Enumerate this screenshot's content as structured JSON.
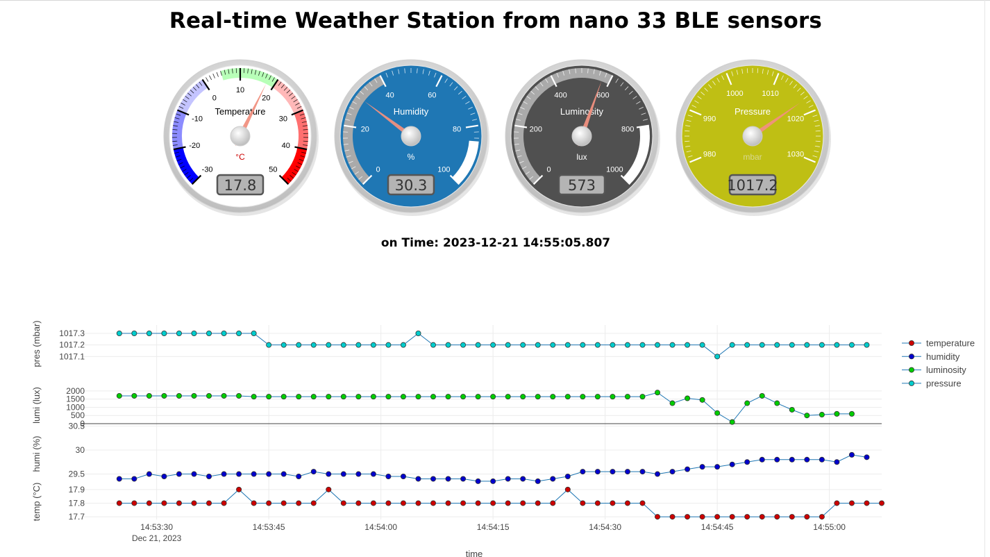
{
  "page": {
    "title": "Real-time Weather Station from nano 33 BLE sensors",
    "time_label": "on Time: 2023-12-21 14:55:05.807"
  },
  "gauges": [
    {
      "id": "temperature",
      "title": "Temperature",
      "units": "°C",
      "value": 17.8,
      "display": "17.8",
      "min": -30,
      "max": 50,
      "major_ticks": [
        "-30",
        "-20",
        "-10",
        "0",
        "10",
        "20",
        "30",
        "40",
        "50"
      ],
      "face_color": "#ffffff",
      "text_color": "#000000",
      "units_color": "#cc0000",
      "highlights": [
        {
          "from": -30,
          "to": -20,
          "color": "#0000ff"
        },
        {
          "from": -20,
          "to": -10,
          "color": "#8c8cff"
        },
        {
          "from": -10,
          "to": 0,
          "color": "#c4c4ff"
        },
        {
          "from": 5,
          "to": 20,
          "color": "#b8ffb8"
        },
        {
          "from": 20,
          "to": 30,
          "color": "#ffb8b8"
        },
        {
          "from": 30,
          "to": 40,
          "color": "#ff7070"
        },
        {
          "from": 40,
          "to": 50,
          "color": "#ff0000"
        }
      ]
    },
    {
      "id": "humidity",
      "title": "Humidity",
      "units": "%",
      "value": 30.3,
      "display": "30.3",
      "min": 0,
      "max": 100,
      "major_ticks": [
        "0",
        "20",
        "40",
        "60",
        "80",
        "100"
      ],
      "face_color": "#1f77b4",
      "text_color": "#ffffff",
      "units_color": "#ffffff",
      "highlights": [
        {
          "from": 0,
          "to": 40,
          "color": "#aaaaaa"
        },
        {
          "from": 85,
          "to": 100,
          "color": "#ffffff"
        }
      ]
    },
    {
      "id": "luminosity",
      "title": "Luminosity",
      "units": "lux",
      "value": 573,
      "display": "573",
      "min": 0,
      "max": 1000,
      "major_ticks": [
        "0",
        "200",
        "400",
        "600",
        "800",
        "1000"
      ],
      "face_color": "#505050",
      "text_color": "#ffffff",
      "units_color": "#ffffff",
      "highlights": [
        {
          "from": 0,
          "to": 600,
          "color": "#aaaaaa"
        },
        {
          "from": 800,
          "to": 1000,
          "color": "#ffffff"
        }
      ]
    },
    {
      "id": "pressure",
      "title": "Pressure",
      "units": "mbar",
      "value": 1017.2,
      "display": "1017.2",
      "min": 975,
      "max": 1035,
      "major_ticks": [
        "980",
        "990",
        "1000",
        "1010",
        "1020",
        "1030"
      ],
      "tick_values": [
        980,
        990,
        1000,
        1010,
        1020,
        1030
      ],
      "face_color": "#bfbf14",
      "text_color": "#ffffff",
      "units_color": "#d8d890",
      "highlights": []
    }
  ],
  "chart_data": {
    "type": "line",
    "xlabel": "time",
    "x_ticks": [
      "14:53:30",
      "14:53:45",
      "14:54:00",
      "14:54:15",
      "14:54:30",
      "14:54:45",
      "14:55:00"
    ],
    "x_tick_sublabel": "Dec 21, 2023",
    "x_start_time": "14:53:25",
    "x_step_seconds": 2,
    "x_range": [
      "14:53:20",
      "14:55:07"
    ],
    "legend_position": "right",
    "grid": true,
    "series": [
      {
        "name": "temperature",
        "ylabel": "temp (°C)",
        "color": "#cc0000",
        "yticks": [
          "17.7",
          "17.8",
          "17.9"
        ],
        "ylim": [
          17.68,
          17.94
        ],
        "values": [
          17.8,
          17.8,
          17.8,
          17.8,
          17.8,
          17.8,
          17.8,
          17.8,
          17.9,
          17.8,
          17.8,
          17.8,
          17.8,
          17.8,
          17.9,
          17.8,
          17.8,
          17.8,
          17.8,
          17.8,
          17.8,
          17.8,
          17.8,
          17.8,
          17.8,
          17.8,
          17.8,
          17.8,
          17.8,
          17.8,
          17.9,
          17.8,
          17.8,
          17.8,
          17.8,
          17.8,
          17.7,
          17.7,
          17.7,
          17.7,
          17.7,
          17.7,
          17.7,
          17.7,
          17.7,
          17.7,
          17.7,
          17.7,
          17.8,
          17.8,
          17.8,
          17.8
        ]
      },
      {
        "name": "humidity",
        "ylabel": "humi (%)",
        "color": "#0000cc",
        "yticks": [
          "29.5",
          "30",
          "30.5"
        ],
        "ylim": [
          29.32,
          30.52
        ],
        "values": [
          29.4,
          29.4,
          29.5,
          29.45,
          29.5,
          29.5,
          29.45,
          29.5,
          29.5,
          29.5,
          29.5,
          29.5,
          29.45,
          29.55,
          29.5,
          29.5,
          29.5,
          29.5,
          29.45,
          29.45,
          29.4,
          29.4,
          29.4,
          29.4,
          29.35,
          29.35,
          29.4,
          29.4,
          29.35,
          29.4,
          29.45,
          29.55,
          29.55,
          29.55,
          29.55,
          29.55,
          29.5,
          29.55,
          29.6,
          29.65,
          29.65,
          29.7,
          29.75,
          29.8,
          29.8,
          29.8,
          29.8,
          29.8,
          29.75,
          29.9,
          29.85
        ]
      },
      {
        "name": "luminosity",
        "ylabel": "lumi (lux)",
        "color": "#00cc00",
        "yticks": [
          "0",
          "500",
          "1000",
          "1500",
          "2000"
        ],
        "ylim": [
          0,
          2250
        ],
        "values": [
          1700,
          1700,
          1700,
          1700,
          1700,
          1700,
          1700,
          1700,
          1700,
          1650,
          1650,
          1650,
          1650,
          1650,
          1650,
          1650,
          1650,
          1650,
          1650,
          1650,
          1650,
          1650,
          1650,
          1650,
          1650,
          1650,
          1650,
          1650,
          1650,
          1650,
          1650,
          1650,
          1650,
          1650,
          1650,
          1650,
          1900,
          1250,
          1550,
          1450,
          650,
          100,
          1250,
          1700,
          1250,
          850,
          500,
          550,
          600,
          600
        ]
      },
      {
        "name": "pressure",
        "ylabel": "pres (mbar)",
        "color": "#00cccc",
        "yticks": [
          "1017.1",
          "1017.2",
          "1017.3"
        ],
        "ylim": [
          1017.06,
          1017.36
        ],
        "values": [
          1017.3,
          1017.3,
          1017.3,
          1017.3,
          1017.3,
          1017.3,
          1017.3,
          1017.3,
          1017.3,
          1017.3,
          1017.2,
          1017.2,
          1017.2,
          1017.2,
          1017.2,
          1017.2,
          1017.2,
          1017.2,
          1017.2,
          1017.2,
          1017.3,
          1017.2,
          1017.2,
          1017.2,
          1017.2,
          1017.2,
          1017.2,
          1017.2,
          1017.2,
          1017.2,
          1017.2,
          1017.2,
          1017.2,
          1017.2,
          1017.2,
          1017.2,
          1017.2,
          1017.2,
          1017.2,
          1017.2,
          1017.1,
          1017.2,
          1017.2,
          1017.2,
          1017.2,
          1017.2,
          1017.2,
          1017.2,
          1017.2,
          1017.2,
          1017.2
        ]
      }
    ]
  }
}
